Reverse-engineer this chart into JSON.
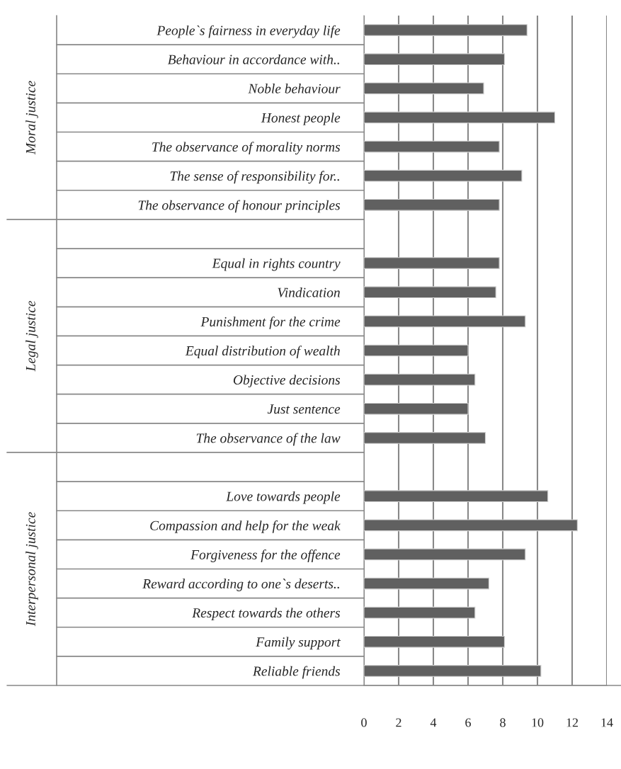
{
  "chart_data": {
    "type": "bar",
    "orientation": "horizontal",
    "categories": [
      "People`s fairness in everyday life",
      "Behaviour in accordance with..",
      "Noble behaviour",
      "Honest people",
      "The observance of morality norms",
      "The sense of responsibility for..",
      "The observance of honour principles",
      null,
      "Equal in rights country",
      "Vindication",
      "Punishment for the crime",
      "Equal distribution of wealth",
      "Objective decisions",
      "Just sentence",
      "The observance of the law",
      null,
      "Love towards people",
      "Compassion and help for the weak",
      "Forgiveness for the offence",
      "Reward according to one`s deserts..",
      "Respect towards the others",
      "Family support",
      "Reliable friends"
    ],
    "values": [
      9.4,
      8.1,
      6.9,
      11.0,
      7.8,
      9.1,
      7.8,
      null,
      7.8,
      7.6,
      9.3,
      6.0,
      6.4,
      6.0,
      7.0,
      null,
      10.6,
      12.3,
      9.3,
      7.2,
      6.4,
      8.1,
      10.2
    ],
    "color": "#606060",
    "xlim": [
      0,
      14
    ],
    "xticks": [
      0,
      2,
      4,
      6,
      8,
      10,
      12,
      14
    ],
    "grid": "x",
    "annotations": [
      "Moral justice",
      "Legal justice",
      "Interpersonal justice"
    ]
  }
}
